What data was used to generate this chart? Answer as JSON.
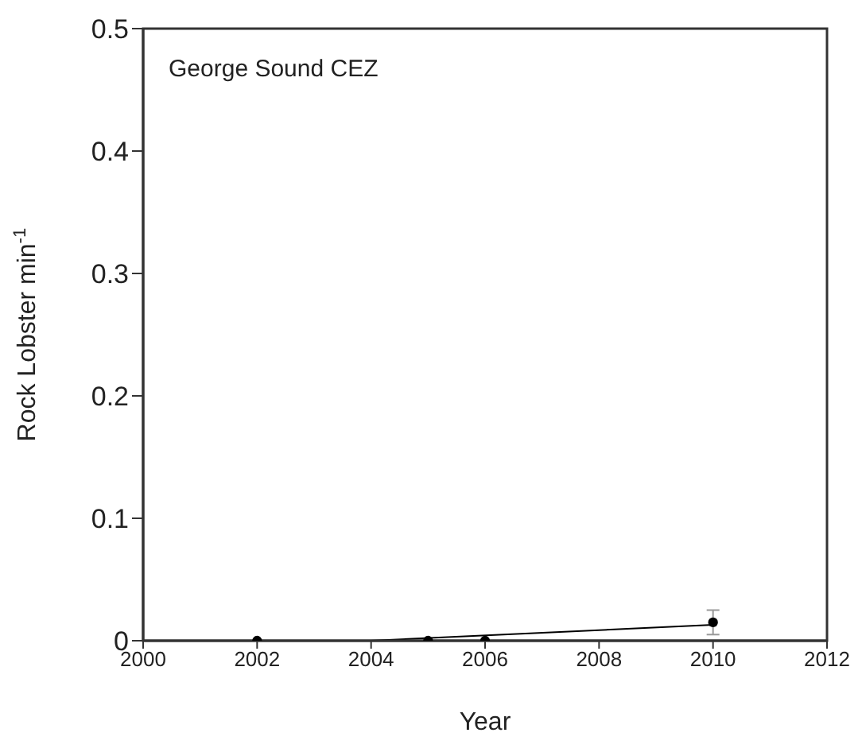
{
  "chart_data": {
    "type": "scatter",
    "xlabel": "Year",
    "ylabel": "Rock Lobster min$^{-1}$",
    "annotations": [
      "George Sound CEZ"
    ],
    "xlim": [
      2000,
      2012
    ],
    "xticks": [
      2000,
      2002,
      2004,
      2006,
      2008,
      2010,
      2012
    ],
    "ylim": [
      0,
      0.5
    ],
    "yticks": [
      0,
      0.1,
      0.2,
      0.3,
      0.4,
      0.5
    ],
    "grid": false,
    "series": [
      {
        "color": "#000000",
        "marker": "circle",
        "x": [
          2002,
          2005,
          2006,
          2010
        ],
        "values": [
          0,
          0,
          0,
          0.015
        ],
        "errors": [
          null,
          null,
          null,
          0.01
        ]
      },
      {
        "type": "line",
        "color": "#000000",
        "line_style": "solid",
        "marker": "none",
        "x": [
          2004,
          2010
        ],
        "values": [
          0,
          0.013
        ]
      }
    ]
  }
}
